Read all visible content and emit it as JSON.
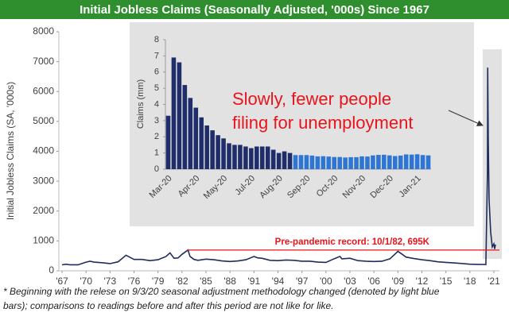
{
  "chart_data": [
    {
      "type": "line",
      "title": "Initial Jobless Claims (Seasonally Adjusted, '000s) Since 1967",
      "y_label": "Initial Jobless Claims (SA, '000s)",
      "x": [
        1967,
        1967.5,
        1968,
        1969,
        1970,
        1970.5,
        1971,
        1972,
        1973,
        1974,
        1975,
        1975.5,
        1976,
        1977,
        1978,
        1979,
        1980,
        1980.5,
        1981,
        1981.5,
        1982,
        1982.75,
        1983,
        1983.5,
        1984,
        1985,
        1986,
        1987,
        1988,
        1989,
        1990,
        1991,
        1991.5,
        1992,
        1993,
        1994,
        1995,
        1996,
        1997,
        1998,
        1999,
        2000,
        2001,
        2001.75,
        2002,
        2003,
        2004,
        2005,
        2006,
        2007,
        2008,
        2009,
        2009.5,
        2010,
        2011,
        2012,
        2013,
        2014,
        2015,
        2016,
        2017,
        2018,
        2019,
        2020,
        2020.2,
        2020.23,
        2020.3,
        2020.4,
        2020.6,
        2020.8,
        2021,
        2021.1,
        2021.2
      ],
      "values": [
        200,
        220,
        200,
        200,
        290,
        320,
        290,
        270,
        240,
        300,
        520,
        450,
        380,
        380,
        340,
        370,
        480,
        600,
        420,
        430,
        550,
        695,
        480,
        380,
        350,
        390,
        370,
        330,
        310,
        330,
        370,
        480,
        430,
        420,
        350,
        340,
        360,
        350,
        320,
        320,
        290,
        280,
        400,
        480,
        400,
        420,
        340,
        320,
        310,
        320,
        400,
        650,
        560,
        460,
        410,
        370,
        340,
        300,
        280,
        265,
        245,
        220,
        215,
        210,
        3300,
        6800,
        4400,
        2400,
        1300,
        800,
        900,
        730,
        880
      ],
      "color": "#1f2d5c",
      "xlim": [
        1966.6,
        2021.7
      ],
      "xticks": [
        {
          "value": 1967,
          "label": "'67"
        },
        {
          "value": 1970,
          "label": "'70"
        },
        {
          "value": 1973,
          "label": "'73"
        },
        {
          "value": 1976,
          "label": "'76"
        },
        {
          "value": 1979,
          "label": "'79"
        },
        {
          "value": 1982,
          "label": "'82"
        },
        {
          "value": 1985,
          "label": "'85"
        },
        {
          "value": 1988,
          "label": "'88"
        },
        {
          "value": 1991,
          "label": "'91"
        },
        {
          "value": 1994,
          "label": "'94"
        },
        {
          "value": 1997,
          "label": "'97"
        },
        {
          "value": 2000,
          "label": "'00"
        },
        {
          "value": 2003,
          "label": "'03"
        },
        {
          "value": 2006,
          "label": "'06"
        },
        {
          "value": 2009,
          "label": "'09"
        },
        {
          "value": 2012,
          "label": "'12"
        },
        {
          "value": 2015,
          "label": "'15"
        },
        {
          "value": 2018,
          "label": "'18"
        },
        {
          "value": 2021,
          "label": "'21"
        }
      ],
      "ylim": [
        0,
        8000
      ],
      "yticks": [
        0,
        1000,
        2000,
        3000,
        4000,
        5000,
        6000,
        7000,
        8000
      ],
      "reference_line": {
        "x": 1982.75,
        "value": 695,
        "label": "Pre-pandemic record: 10/1/82, 695K",
        "color": "#e8141c"
      }
    },
    {
      "type": "bar",
      "y_label": "Claims (mm)",
      "categories": [
        "Mar-20",
        null,
        null,
        null,
        null,
        "Apr-20",
        null,
        null,
        null,
        null,
        "May-20",
        null,
        null,
        null,
        null,
        "Jul-20",
        null,
        null,
        null,
        null,
        "Aug-20",
        null,
        null,
        null,
        null,
        "Sep-20",
        null,
        null,
        null,
        null,
        "Oct-20",
        null,
        null,
        null,
        null,
        "Nov-20",
        null,
        null,
        null,
        null,
        "Dec-20",
        null,
        null,
        null,
        null,
        "Jan-21",
        null,
        null
      ],
      "values": [
        3.3,
        6.9,
        6.6,
        5.2,
        4.4,
        3.8,
        3.2,
        2.7,
        2.4,
        2.1,
        1.9,
        1.6,
        1.5,
        1.5,
        1.4,
        1.3,
        1.4,
        1.4,
        1.4,
        1.2,
        1.0,
        1.1,
        1.0,
        0.87,
        0.87,
        0.87,
        0.84,
        0.79,
        0.8,
        0.78,
        0.75,
        0.75,
        0.72,
        0.74,
        0.74,
        0.79,
        0.78,
        0.85,
        0.88,
        0.89,
        0.85,
        0.81,
        0.84,
        0.91,
        0.9,
        0.92,
        0.87,
        0.85
      ],
      "colors": [
        "#1f2d6b",
        "#1f2d6b",
        "#1f2d6b",
        "#1f2d6b",
        "#1f2d6b",
        "#1f2d6b",
        "#1f2d6b",
        "#1f2d6b",
        "#1f2d6b",
        "#1f2d6b",
        "#1f2d6b",
        "#1f2d6b",
        "#1f2d6b",
        "#1f2d6b",
        "#1f2d6b",
        "#1f2d6b",
        "#1f2d6b",
        "#1f2d6b",
        "#1f2d6b",
        "#1f2d6b",
        "#1f2d6b",
        "#1f2d6b",
        "#1f2d6b",
        "#2e75d4",
        "#2e75d4",
        "#2e75d4",
        "#2e75d4",
        "#2e75d4",
        "#2e75d4",
        "#2e75d4",
        "#2e75d4",
        "#2e75d4",
        "#2e75d4",
        "#2e75d4",
        "#2e75d4",
        "#2e75d4",
        "#2e75d4",
        "#2e75d4",
        "#2e75d4",
        "#2e75d4",
        "#2e75d4",
        "#2e75d4",
        "#2e75d4",
        "#2e75d4",
        "#2e75d4",
        "#2e75d4",
        "#2e75d4",
        "#2e75d4"
      ],
      "ylim": [
        0,
        8
      ],
      "yticks": [
        0,
        1,
        2,
        3,
        4,
        5,
        6,
        7,
        8
      ],
      "annotation": [
        "Slowly, fewer people",
        "filing for unemployment"
      ]
    }
  ],
  "footnote": [
    "* Beginning with the relese on 9/3/20 seasonal adjustment methodology changed (denoted by light blue",
    "bars); comparisons to readings before and after this period are not like for like."
  ]
}
